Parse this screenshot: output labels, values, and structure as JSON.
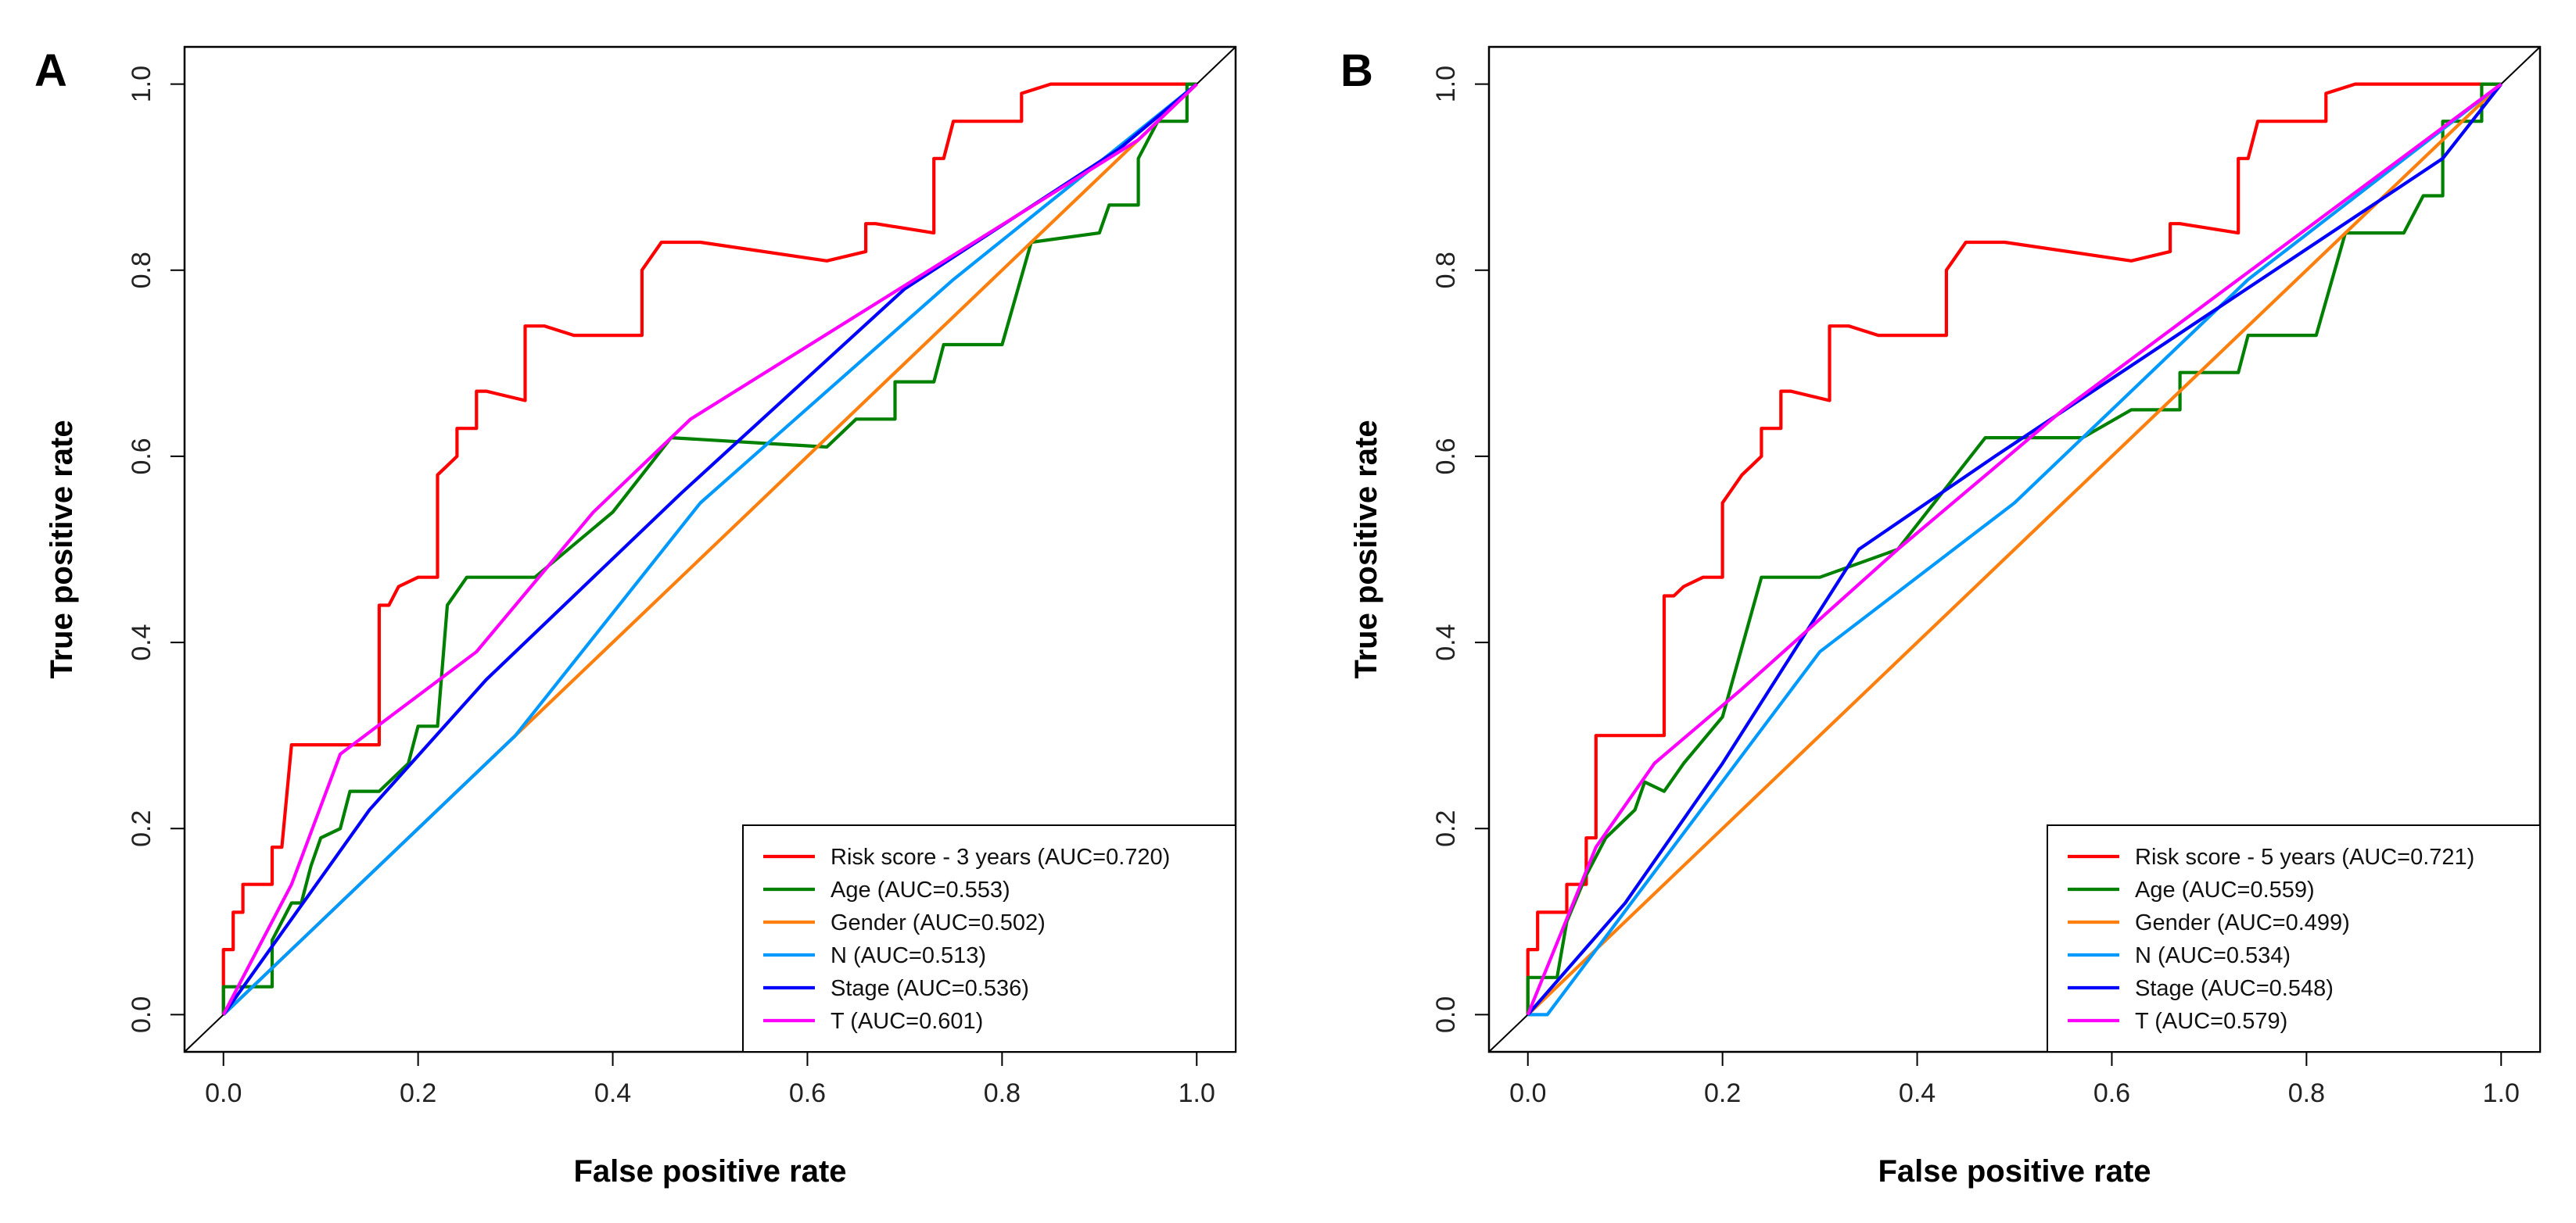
{
  "chart_data": [
    {
      "panel": "A",
      "type": "line",
      "xlabel": "False positive rate",
      "ylabel": "True positive rate",
      "xlim": [
        0,
        1
      ],
      "ylim": [
        0,
        1
      ],
      "xticks": [
        "0.0",
        "0.2",
        "0.4",
        "0.6",
        "0.8",
        "1.0"
      ],
      "yticks": [
        "0.0",
        "0.2",
        "0.4",
        "0.6",
        "0.8",
        "1.0"
      ],
      "legend_position": "bottom-right",
      "series": [
        {
          "name": "Risk score - 3 years (AUC=0.720)",
          "color": "#ff0000",
          "points": [
            [
              0,
              0
            ],
            [
              0,
              0.07
            ],
            [
              0.01,
              0.07
            ],
            [
              0.01,
              0.11
            ],
            [
              0.02,
              0.11
            ],
            [
              0.02,
              0.14
            ],
            [
              0.05,
              0.14
            ],
            [
              0.05,
              0.18
            ],
            [
              0.06,
              0.18
            ],
            [
              0.07,
              0.29
            ],
            [
              0.16,
              0.29
            ],
            [
              0.16,
              0.44
            ],
            [
              0.17,
              0.44
            ],
            [
              0.18,
              0.46
            ],
            [
              0.2,
              0.47
            ],
            [
              0.22,
              0.47
            ],
            [
              0.22,
              0.58
            ],
            [
              0.23,
              0.59
            ],
            [
              0.24,
              0.6
            ],
            [
              0.24,
              0.63
            ],
            [
              0.26,
              0.63
            ],
            [
              0.26,
              0.67
            ],
            [
              0.27,
              0.67
            ],
            [
              0.31,
              0.66
            ],
            [
              0.31,
              0.74
            ],
            [
              0.33,
              0.74
            ],
            [
              0.36,
              0.73
            ],
            [
              0.43,
              0.73
            ],
            [
              0.43,
              0.8
            ],
            [
              0.45,
              0.83
            ],
            [
              0.49,
              0.83
            ],
            [
              0.62,
              0.81
            ],
            [
              0.66,
              0.82
            ],
            [
              0.66,
              0.85
            ],
            [
              0.67,
              0.85
            ],
            [
              0.73,
              0.84
            ],
            [
              0.73,
              0.92
            ],
            [
              0.74,
              0.92
            ],
            [
              0.75,
              0.96
            ],
            [
              0.82,
              0.96
            ],
            [
              0.82,
              0.99
            ],
            [
              0.85,
              1.0
            ],
            [
              0.93,
              1.0
            ],
            [
              1.0,
              1.0
            ]
          ]
        },
        {
          "name": "Age (AUC=0.553)",
          "color": "#008000",
          "points": [
            [
              0,
              0
            ],
            [
              0,
              0.03
            ],
            [
              0.05,
              0.03
            ],
            [
              0.05,
              0.08
            ],
            [
              0.07,
              0.12
            ],
            [
              0.08,
              0.12
            ],
            [
              0.09,
              0.16
            ],
            [
              0.1,
              0.19
            ],
            [
              0.12,
              0.2
            ],
            [
              0.13,
              0.24
            ],
            [
              0.14,
              0.24
            ],
            [
              0.16,
              0.24
            ],
            [
              0.19,
              0.27
            ],
            [
              0.2,
              0.31
            ],
            [
              0.22,
              0.31
            ],
            [
              0.23,
              0.44
            ],
            [
              0.25,
              0.47
            ],
            [
              0.26,
              0.47
            ],
            [
              0.32,
              0.47
            ],
            [
              0.4,
              0.54
            ],
            [
              0.46,
              0.62
            ],
            [
              0.62,
              0.61
            ],
            [
              0.65,
              0.64
            ],
            [
              0.69,
              0.64
            ],
            [
              0.69,
              0.68
            ],
            [
              0.73,
              0.68
            ],
            [
              0.74,
              0.72
            ],
            [
              0.8,
              0.72
            ],
            [
              0.83,
              0.83
            ],
            [
              0.9,
              0.84
            ],
            [
              0.91,
              0.87
            ],
            [
              0.94,
              0.87
            ],
            [
              0.94,
              0.92
            ],
            [
              0.96,
              0.96
            ],
            [
              0.99,
              0.96
            ],
            [
              0.99,
              1.0
            ],
            [
              1.0,
              1.0
            ]
          ]
        },
        {
          "name": "Gender (AUC=0.502)",
          "color": "#ff7f0e",
          "points": [
            [
              0,
              0
            ],
            [
              0.5,
              0.5
            ],
            [
              1.0,
              1.0
            ]
          ]
        },
        {
          "name": "N (AUC=0.513)",
          "color": "#0099ff",
          "points": [
            [
              0,
              0
            ],
            [
              0.2,
              0.2
            ],
            [
              0.3,
              0.3
            ],
            [
              0.49,
              0.55
            ],
            [
              0.75,
              0.79
            ],
            [
              1.0,
              1.0
            ]
          ]
        },
        {
          "name": "Stage (AUC=0.536)",
          "color": "#0000ff",
          "points": [
            [
              0,
              0
            ],
            [
              0.15,
              0.22
            ],
            [
              0.27,
              0.36
            ],
            [
              0.47,
              0.56
            ],
            [
              0.7,
              0.78
            ],
            [
              0.92,
              0.93
            ],
            [
              1.0,
              1.0
            ]
          ]
        },
        {
          "name": "T (AUC=0.601)",
          "color": "#ff00ff",
          "points": [
            [
              0,
              0
            ],
            [
              0.07,
              0.14
            ],
            [
              0.12,
              0.28
            ],
            [
              0.26,
              0.39
            ],
            [
              0.38,
              0.54
            ],
            [
              0.48,
              0.64
            ],
            [
              0.94,
              0.94
            ],
            [
              1.0,
              1.0
            ]
          ]
        }
      ]
    },
    {
      "panel": "B",
      "type": "line",
      "xlabel": "False positive rate",
      "ylabel": "True positive rate",
      "xlim": [
        0,
        1
      ],
      "ylim": [
        0,
        1
      ],
      "xticks": [
        "0.0",
        "0.2",
        "0.4",
        "0.6",
        "0.8",
        "1.0"
      ],
      "yticks": [
        "0.0",
        "0.2",
        "0.4",
        "0.6",
        "0.8",
        "1.0"
      ],
      "legend_position": "bottom-right",
      "series": [
        {
          "name": "Risk score - 5 years (AUC=0.721)",
          "color": "#ff0000",
          "points": [
            [
              0,
              0
            ],
            [
              0,
              0.07
            ],
            [
              0.01,
              0.07
            ],
            [
              0.01,
              0.11
            ],
            [
              0.02,
              0.11
            ],
            [
              0.04,
              0.11
            ],
            [
              0.04,
              0.14
            ],
            [
              0.06,
              0.14
            ],
            [
              0.06,
              0.19
            ],
            [
              0.07,
              0.19
            ],
            [
              0.07,
              0.3
            ],
            [
              0.14,
              0.3
            ],
            [
              0.14,
              0.45
            ],
            [
              0.15,
              0.45
            ],
            [
              0.16,
              0.46
            ],
            [
              0.18,
              0.47
            ],
            [
              0.2,
              0.47
            ],
            [
              0.2,
              0.55
            ],
            [
              0.22,
              0.58
            ],
            [
              0.23,
              0.59
            ],
            [
              0.24,
              0.6
            ],
            [
              0.24,
              0.63
            ],
            [
              0.26,
              0.63
            ],
            [
              0.26,
              0.67
            ],
            [
              0.27,
              0.67
            ],
            [
              0.31,
              0.66
            ],
            [
              0.31,
              0.74
            ],
            [
              0.33,
              0.74
            ],
            [
              0.36,
              0.73
            ],
            [
              0.43,
              0.73
            ],
            [
              0.43,
              0.8
            ],
            [
              0.45,
              0.83
            ],
            [
              0.49,
              0.83
            ],
            [
              0.62,
              0.81
            ],
            [
              0.66,
              0.82
            ],
            [
              0.66,
              0.85
            ],
            [
              0.67,
              0.85
            ],
            [
              0.73,
              0.84
            ],
            [
              0.73,
              0.92
            ],
            [
              0.74,
              0.92
            ],
            [
              0.75,
              0.96
            ],
            [
              0.82,
              0.96
            ],
            [
              0.82,
              0.99
            ],
            [
              0.85,
              1.0
            ],
            [
              0.93,
              1.0
            ],
            [
              1.0,
              1.0
            ]
          ]
        },
        {
          "name": "Age (AUC=0.559)",
          "color": "#008000",
          "points": [
            [
              0,
              0
            ],
            [
              0,
              0.04
            ],
            [
              0.03,
              0.04
            ],
            [
              0.04,
              0.1
            ],
            [
              0.06,
              0.15
            ],
            [
              0.08,
              0.19
            ],
            [
              0.09,
              0.2
            ],
            [
              0.11,
              0.22
            ],
            [
              0.12,
              0.25
            ],
            [
              0.14,
              0.24
            ],
            [
              0.16,
              0.27
            ],
            [
              0.2,
              0.32
            ],
            [
              0.24,
              0.47
            ],
            [
              0.3,
              0.47
            ],
            [
              0.38,
              0.5
            ],
            [
              0.47,
              0.62
            ],
            [
              0.57,
              0.62
            ],
            [
              0.62,
              0.65
            ],
            [
              0.67,
              0.65
            ],
            [
              0.67,
              0.69
            ],
            [
              0.73,
              0.69
            ],
            [
              0.74,
              0.73
            ],
            [
              0.81,
              0.73
            ],
            [
              0.84,
              0.84
            ],
            [
              0.9,
              0.84
            ],
            [
              0.92,
              0.88
            ],
            [
              0.94,
              0.88
            ],
            [
              0.94,
              0.96
            ],
            [
              0.98,
              0.96
            ],
            [
              0.98,
              1.0
            ],
            [
              1.0,
              1.0
            ]
          ]
        },
        {
          "name": "Gender (AUC=0.499)",
          "color": "#ff7f0e",
          "points": [
            [
              0,
              0
            ],
            [
              1.0,
              1.0
            ]
          ]
        },
        {
          "name": "N (AUC=0.534)",
          "color": "#0099ff",
          "points": [
            [
              0,
              0
            ],
            [
              0.02,
              0
            ],
            [
              0.3,
              0.39
            ],
            [
              0.5,
              0.55
            ],
            [
              0.74,
              0.79
            ],
            [
              1.0,
              1.0
            ]
          ]
        },
        {
          "name": "Stage (AUC=0.548)",
          "color": "#0000ff",
          "points": [
            [
              0,
              0
            ],
            [
              0.1,
              0.12
            ],
            [
              0.2,
              0.27
            ],
            [
              0.34,
              0.5
            ],
            [
              0.48,
              0.6
            ],
            [
              0.94,
              0.92
            ],
            [
              1.0,
              1.0
            ]
          ]
        },
        {
          "name": "T (AUC=0.579)",
          "color": "#ff00ff",
          "points": [
            [
              0,
              0
            ],
            [
              0.07,
              0.18
            ],
            [
              0.13,
              0.27
            ],
            [
              0.22,
              0.35
            ],
            [
              0.38,
              0.5
            ],
            [
              0.55,
              0.65
            ],
            [
              1.0,
              1.0
            ]
          ]
        }
      ]
    }
  ]
}
